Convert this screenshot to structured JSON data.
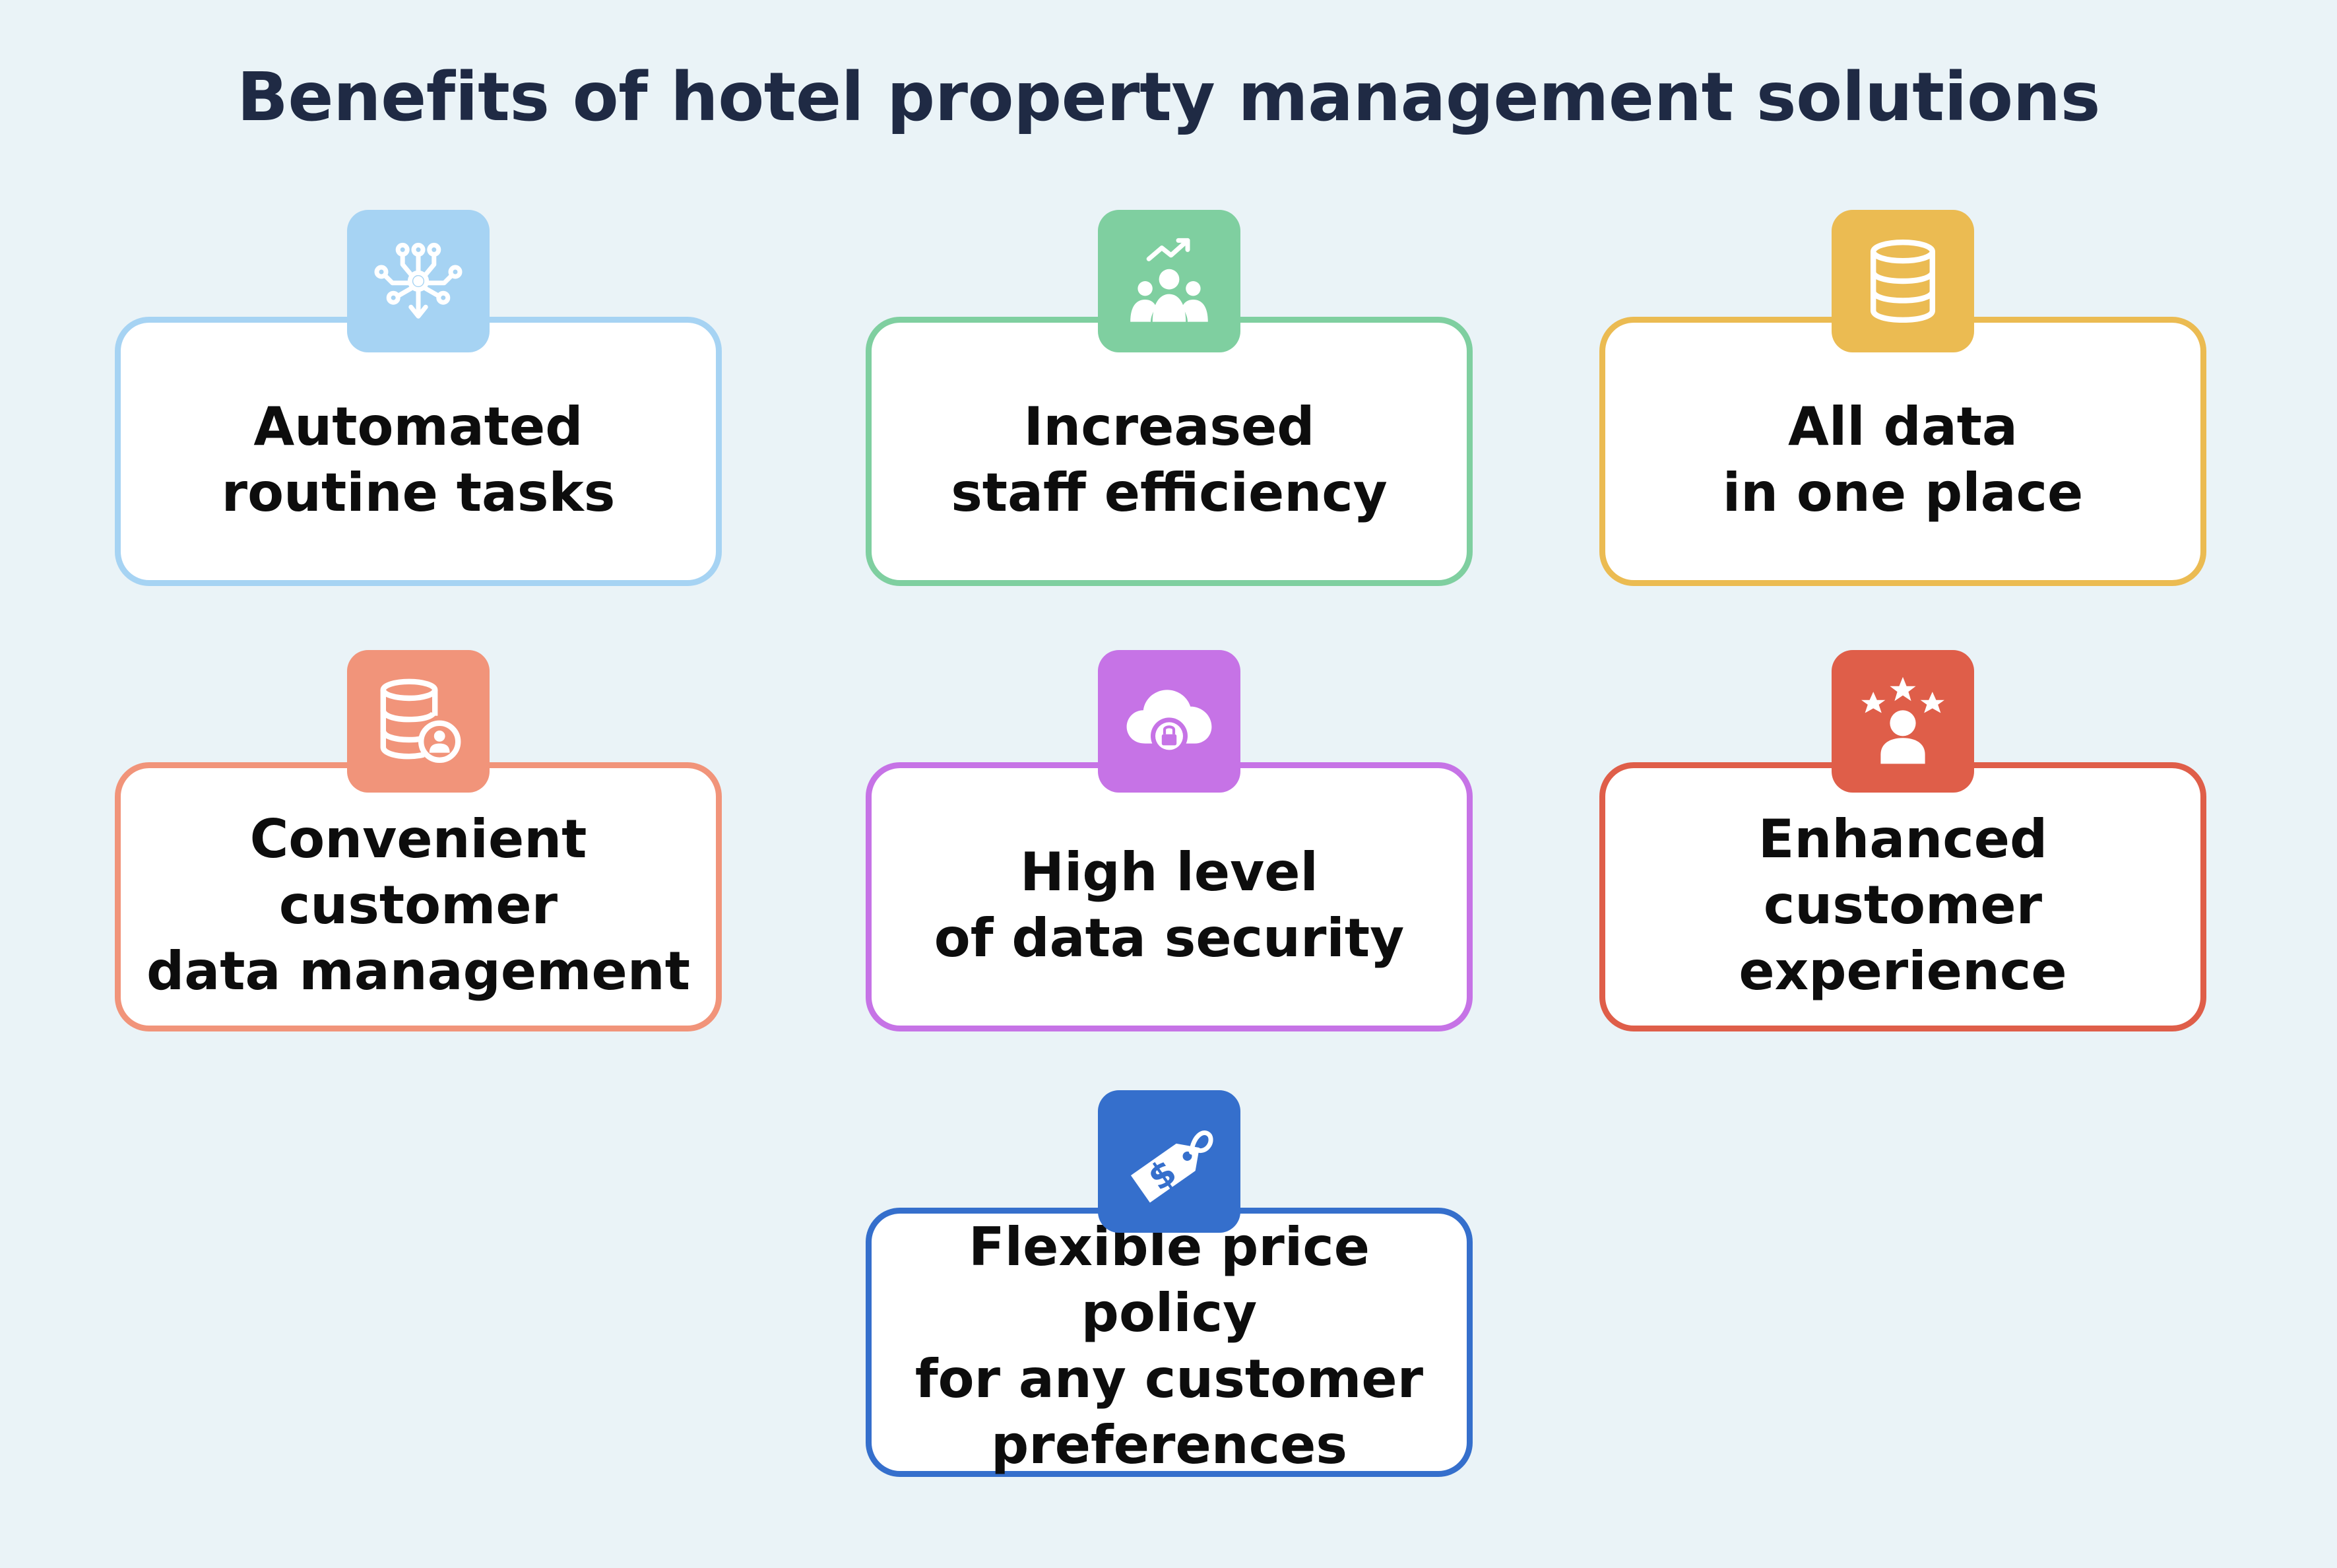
{
  "title": "Benefits of hotel property management solutions",
  "benefits": [
    {
      "label": "Automated\nroutine tasks",
      "icon": "automation-icon",
      "color": "#a6d3f3"
    },
    {
      "label": "Increased\nstaff efficiency",
      "icon": "team-growth-icon",
      "color": "#7fcfa0"
    },
    {
      "label": "All data\nin one place",
      "icon": "database-icon",
      "color": "#ebbb52"
    },
    {
      "label": "Convenient customer\ndata management",
      "icon": "customer-database-icon",
      "color": "#f1947a"
    },
    {
      "label": "High level\nof data security",
      "icon": "cloud-lock-icon",
      "color": "#c673e6"
    },
    {
      "label": "Enhanced\ncustomer experience",
      "icon": "customer-rating-icon",
      "color": "#df5e49"
    },
    {
      "label": "Flexible price policy\nfor any customer\npreferences",
      "icon": "price-tag-icon",
      "color": "#356fcc"
    }
  ]
}
